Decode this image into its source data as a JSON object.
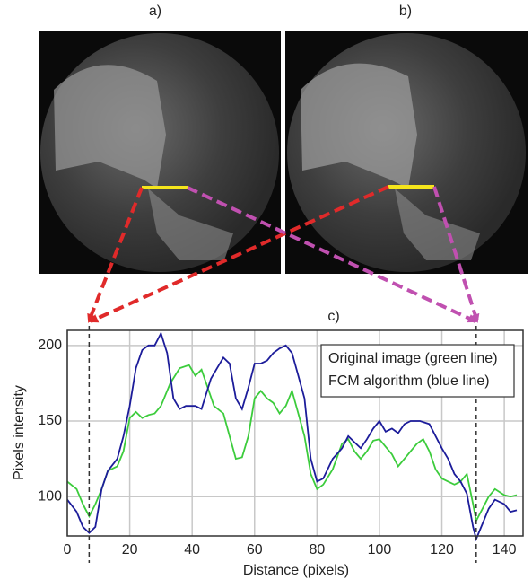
{
  "chart_data": {
    "type": "line",
    "panel_labels": [
      "a)",
      "b)"
    ],
    "title": "c)",
    "xlabel": "Distance (pixels)",
    "ylabel": "Pixels intensity",
    "xlim": [
      0,
      146
    ],
    "xticks": [
      0,
      20,
      40,
      60,
      80,
      100,
      120,
      140
    ],
    "ylim": [
      74,
      210
    ],
    "yticks": [
      100,
      150,
      200
    ],
    "grid": true,
    "vlines": [
      7,
      131
    ],
    "legend": "upper right",
    "series": [
      {
        "name": "Original image (green line)",
        "color": "#3ccc3c",
        "x": [
          0,
          3,
          5,
          7,
          9,
          11,
          13,
          16,
          18,
          20,
          22,
          24,
          26,
          28,
          30,
          33,
          36,
          39,
          41,
          43,
          45,
          47,
          50,
          52,
          54,
          56,
          58,
          60,
          62,
          64,
          66,
          68,
          70,
          72,
          74,
          76,
          78,
          80,
          82,
          85,
          88,
          90,
          92,
          94,
          96,
          98,
          100,
          102,
          104,
          106,
          108,
          110,
          112,
          114,
          116,
          118,
          120,
          122,
          124,
          126,
          128,
          130,
          131,
          133,
          135,
          137,
          140,
          142,
          144
        ],
        "values": [
          110,
          105,
          95,
          87,
          95,
          105,
          117,
          120,
          130,
          152,
          156,
          152,
          154,
          155,
          160,
          175,
          185,
          187,
          180,
          184,
          172,
          160,
          155,
          140,
          125,
          126,
          140,
          165,
          170,
          165,
          162,
          155,
          160,
          170,
          155,
          140,
          115,
          105,
          108,
          118,
          135,
          138,
          130,
          125,
          130,
          137,
          138,
          133,
          128,
          120,
          125,
          130,
          135,
          138,
          130,
          118,
          112,
          110,
          108,
          110,
          115,
          95,
          84,
          92,
          100,
          105,
          101,
          100,
          101
        ]
      },
      {
        "name": "FCM algorithm (blue line)",
        "color": "#1c1c9a",
        "x": [
          0,
          3,
          5,
          7,
          9,
          11,
          13,
          16,
          18,
          20,
          22,
          24,
          26,
          28,
          30,
          32,
          34,
          36,
          38,
          41,
          43,
          46,
          48,
          50,
          52,
          54,
          56,
          58,
          60,
          62,
          64,
          66,
          68,
          70,
          72,
          74,
          76,
          78,
          80,
          82,
          85,
          88,
          90,
          92,
          94,
          96,
          98,
          100,
          102,
          104,
          106,
          108,
          110,
          113,
          116,
          118,
          120,
          122,
          124,
          126,
          128,
          130,
          131,
          133,
          135,
          137,
          140,
          142,
          144
        ],
        "values": [
          98,
          90,
          80,
          76,
          80,
          105,
          117,
          125,
          140,
          160,
          185,
          197,
          200,
          200,
          208,
          195,
          165,
          158,
          160,
          160,
          158,
          178,
          185,
          192,
          188,
          165,
          158,
          172,
          188,
          188,
          190,
          195,
          198,
          200,
          195,
          180,
          165,
          125,
          110,
          112,
          125,
          132,
          140,
          136,
          132,
          138,
          145,
          150,
          143,
          145,
          142,
          148,
          150,
          150,
          148,
          140,
          132,
          125,
          115,
          110,
          102,
          80,
          72,
          82,
          92,
          98,
          95,
          90,
          91
        ]
      }
    ]
  }
}
